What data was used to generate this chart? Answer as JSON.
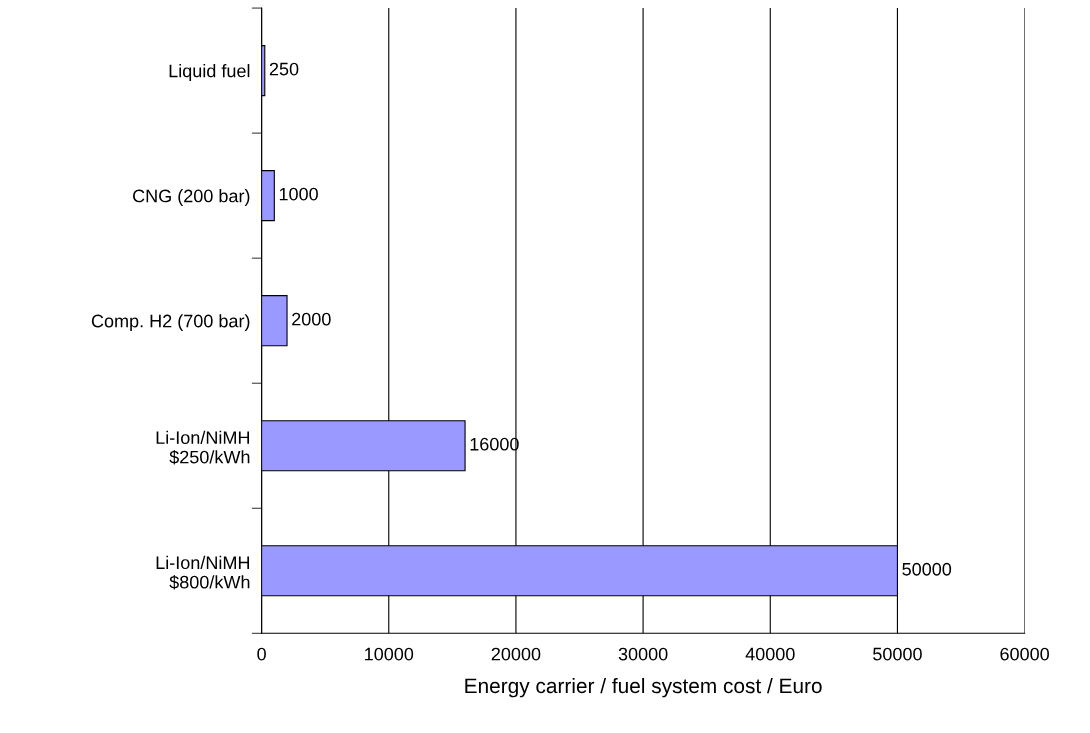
{
  "chart_data": {
    "type": "bar",
    "orientation": "horizontal",
    "xlabel": "Energy carrier / fuel system cost / Euro",
    "categories": [
      "Liquid fuel",
      "CNG (200 bar)",
      "Comp. H2 (700 bar)",
      "Li-Ion/NiMH\n$250/kWh",
      "Li-Ion/NiMH\n$800/kWh"
    ],
    "values": [
      250,
      1000,
      2000,
      16000,
      50000
    ],
    "color": "#9999ff",
    "xlim": [
      0,
      60000
    ],
    "xticks": [
      0,
      10000,
      20000,
      30000,
      40000,
      50000,
      60000
    ],
    "grid": "x",
    "data_labels": true
  }
}
